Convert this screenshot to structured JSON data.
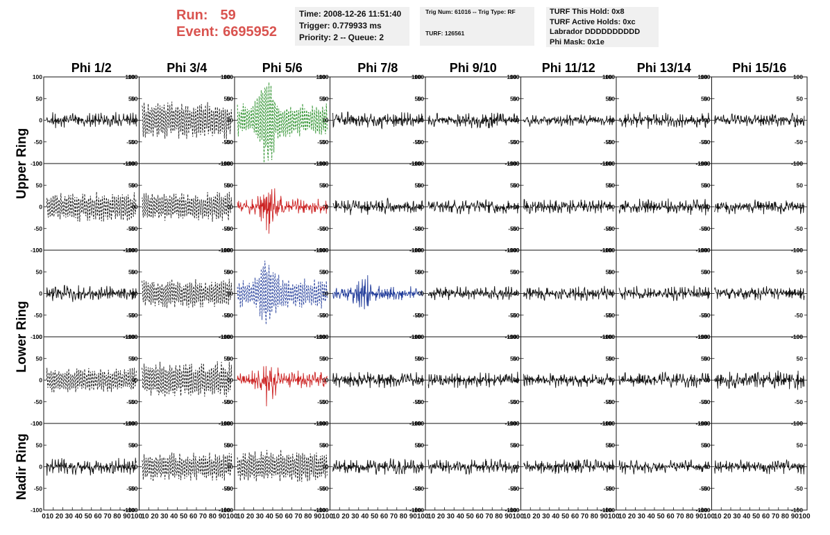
{
  "header": {
    "run_label": "Run:",
    "run_value": "59",
    "event_label": "Event:",
    "event_value": "6695952",
    "time_line": "Time: 2008-12-26 11:51:40",
    "trigger_line": "Trigger: 0.779933 ms",
    "priority_line": "Priority: 2 -- Queue: 2",
    "trig_num_line": "Trig Num: 61016 -- Trig Type: RF",
    "turf_line": "TURF: 126561",
    "turf_hold_line": "TURF This Hold: 0x8",
    "turf_active_line": "TURF Active Holds: 0xc",
    "labrador_line": "Labrador DDDDDDDDDD",
    "phi_mask_line": "Phi Mask: 0x1e"
  },
  "colors": {
    "run_event": "#d9534f",
    "green": "#1f8a1f",
    "red": "#cc2222",
    "blue": "#1f3a99",
    "black": "#111111"
  },
  "chart_data": {
    "type": "line",
    "columns": [
      "Phi 1/2",
      "Phi 3/4",
      "Phi 5/6",
      "Phi 7/8",
      "Phi 9/10",
      "Phi 11/12",
      "Phi 13/14",
      "Phi 15/16"
    ],
    "rows": [
      "Upper Ring",
      "Lower Ring",
      "Nadir Ring"
    ],
    "panel_rows": 5,
    "ring_rows": {
      "Upper Ring": [
        0,
        1
      ],
      "Lower Ring": [
        2,
        3
      ],
      "Nadir Ring": [
        4
      ]
    },
    "ylim": [
      -100,
      100
    ],
    "yticks": [
      100,
      50,
      0,
      -50,
      -100
    ],
    "xlim": [
      0,
      100
    ],
    "xticks": [
      0,
      10,
      20,
      30,
      40,
      50,
      60,
      70,
      80,
      90,
      100
    ],
    "x_tick_text": [
      "0",
      "10 20 30 40 50 60 70 80 90100",
      "10 20 30 40 50 60 70 80 90100",
      "10 20 30 40 50 60 70 80 90100",
      "10 20 30 40 50 60 70 80 90100",
      "10 20 30 40 50 60 70 80 90100",
      "10 20 30 40 50 60 70 80 90100",
      "10 20 30 40 50 60 70 80 90100",
      "10 20 30 40 50 60 70 80 90100"
    ],
    "panels": [
      [
        {
          "style": "solid",
          "color": "black",
          "amp": 20,
          "burst": 0
        },
        {
          "style": "dashed",
          "color": "black",
          "amp": 45,
          "burst": 0
        },
        {
          "style": "dashed",
          "color": "green",
          "amp": 40,
          "burst": 75
        },
        {
          "style": "solid",
          "color": "black",
          "amp": 20,
          "burst": 0
        },
        {
          "style": "solid",
          "color": "black",
          "amp": 20,
          "burst": 0
        },
        {
          "style": "solid",
          "color": "black",
          "amp": 15,
          "burst": 0
        },
        {
          "style": "solid",
          "color": "black",
          "amp": 20,
          "burst": 0
        },
        {
          "style": "solid",
          "color": "black",
          "amp": 18,
          "burst": 0
        }
      ],
      [
        {
          "style": "dashed",
          "color": "black",
          "amp": 35,
          "burst": 0
        },
        {
          "style": "dashed",
          "color": "black",
          "amp": 35,
          "burst": 0
        },
        {
          "style": "solid",
          "color": "red",
          "amp": 20,
          "burst": 65
        },
        {
          "style": "solid",
          "color": "black",
          "amp": 20,
          "burst": 0
        },
        {
          "style": "solid",
          "color": "black",
          "amp": 18,
          "burst": 0
        },
        {
          "style": "solid",
          "color": "black",
          "amp": 18,
          "burst": 0
        },
        {
          "style": "solid",
          "color": "black",
          "amp": 20,
          "burst": 0
        },
        {
          "style": "solid",
          "color": "black",
          "amp": 18,
          "burst": 0
        }
      ],
      [
        {
          "style": "solid",
          "color": "black",
          "amp": 20,
          "burst": 0
        },
        {
          "style": "dashed",
          "color": "black",
          "amp": 35,
          "burst": 0
        },
        {
          "style": "dashed",
          "color": "blue",
          "amp": 35,
          "burst": 60
        },
        {
          "style": "solid",
          "color": "blue",
          "amp": 18,
          "burst": 35
        },
        {
          "style": "solid",
          "color": "black",
          "amp": 18,
          "burst": 0
        },
        {
          "style": "solid",
          "color": "black",
          "amp": 18,
          "burst": 0
        },
        {
          "style": "solid",
          "color": "black",
          "amp": 18,
          "burst": 0
        },
        {
          "style": "solid",
          "color": "black",
          "amp": 18,
          "burst": 0
        }
      ],
      [
        {
          "style": "dashed",
          "color": "black",
          "amp": 30,
          "burst": 0
        },
        {
          "style": "dashed",
          "color": "black",
          "amp": 45,
          "burst": 0
        },
        {
          "style": "solid",
          "color": "red",
          "amp": 22,
          "burst": 45
        },
        {
          "style": "solid",
          "color": "black",
          "amp": 22,
          "burst": 0
        },
        {
          "style": "solid",
          "color": "black",
          "amp": 20,
          "burst": 0
        },
        {
          "style": "solid",
          "color": "black",
          "amp": 18,
          "burst": 0
        },
        {
          "style": "solid",
          "color": "black",
          "amp": 20,
          "burst": 0
        },
        {
          "style": "solid",
          "color": "black",
          "amp": 24,
          "burst": 0
        }
      ],
      [
        {
          "style": "solid",
          "color": "black",
          "amp": 22,
          "burst": 0
        },
        {
          "style": "dashed",
          "color": "black",
          "amp": 35,
          "burst": 0
        },
        {
          "style": "dashed",
          "color": "black",
          "amp": 40,
          "burst": 0
        },
        {
          "style": "solid",
          "color": "black",
          "amp": 20,
          "burst": 0
        },
        {
          "style": "solid",
          "color": "black",
          "amp": 20,
          "burst": 0
        },
        {
          "style": "solid",
          "color": "black",
          "amp": 18,
          "burst": 0
        },
        {
          "style": "solid",
          "color": "black",
          "amp": 18,
          "burst": 0
        },
        {
          "style": "solid",
          "color": "black",
          "amp": 18,
          "burst": 0
        }
      ]
    ]
  }
}
